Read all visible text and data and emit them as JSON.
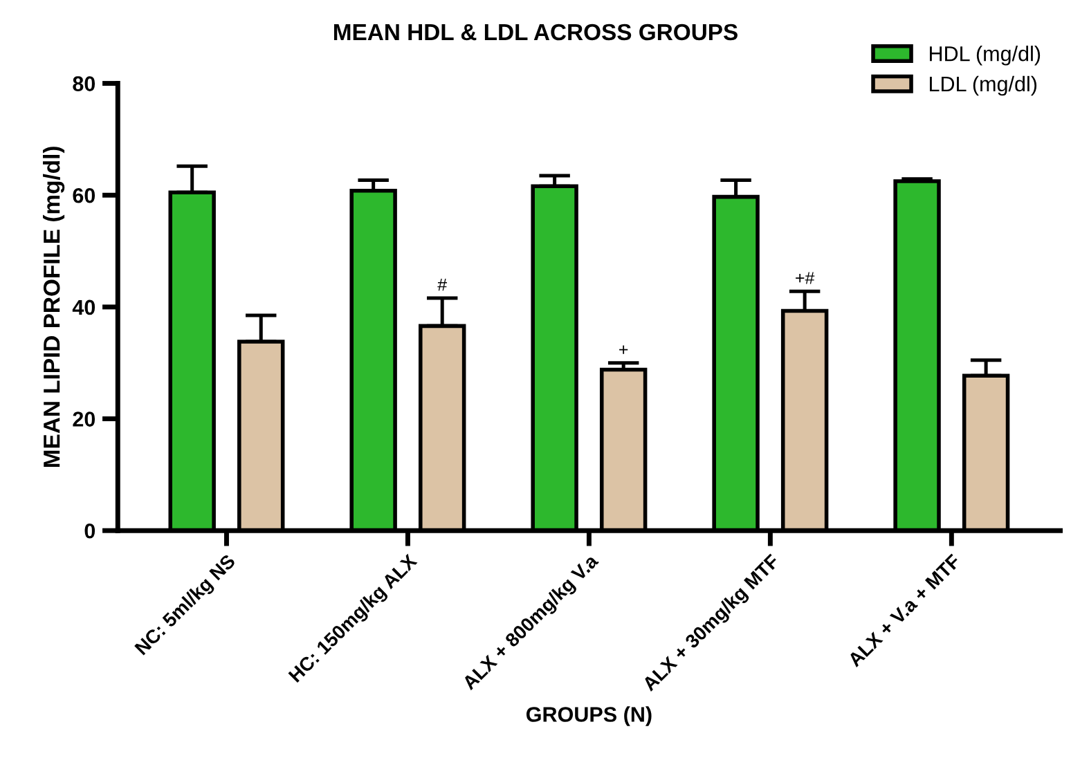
{
  "chart_data": {
    "type": "bar",
    "title": "MEAN HDL & LDL ACROSS GROUPS",
    "xlabel": "GROUPS (N)",
    "ylabel": "MEAN LIPID PROFILE (mg/dl)",
    "categories": [
      "NC: 5ml/kg NS",
      "HC: 150mg/kg ALX",
      "ALX + 800mg/kg V.a",
      "ALX + 30mg/kg MTF",
      "ALX + V.a + MTF"
    ],
    "series": [
      {
        "name": "HDL (mg/dl)",
        "color": "#2db82d",
        "values": [
          60.5,
          60.8,
          61.6,
          59.7,
          62.5
        ],
        "errors": [
          [
            60.5,
            65.2
          ],
          [
            60.8,
            62.7
          ],
          [
            61.6,
            63.5
          ],
          [
            59.7,
            62.7
          ],
          [
            62.5,
            62.9
          ]
        ]
      },
      {
        "name": "LDL (mg/dl)",
        "color": "#dcc3a5",
        "values": [
          33.8,
          36.6,
          28.8,
          39.3,
          27.7
        ],
        "errors": [
          [
            33.8,
            38.5
          ],
          [
            36.6,
            41.6
          ],
          [
            28.8,
            30.0
          ],
          [
            39.3,
            42.8
          ],
          [
            27.7,
            30.5
          ]
        ],
        "value_labels": [
          null,
          "#",
          "+",
          "+#",
          null
        ]
      }
    ],
    "ylim": [
      0,
      80
    ],
    "yticks": [
      0,
      20,
      40,
      60,
      80
    ],
    "grid": false,
    "legend": "top right"
  }
}
